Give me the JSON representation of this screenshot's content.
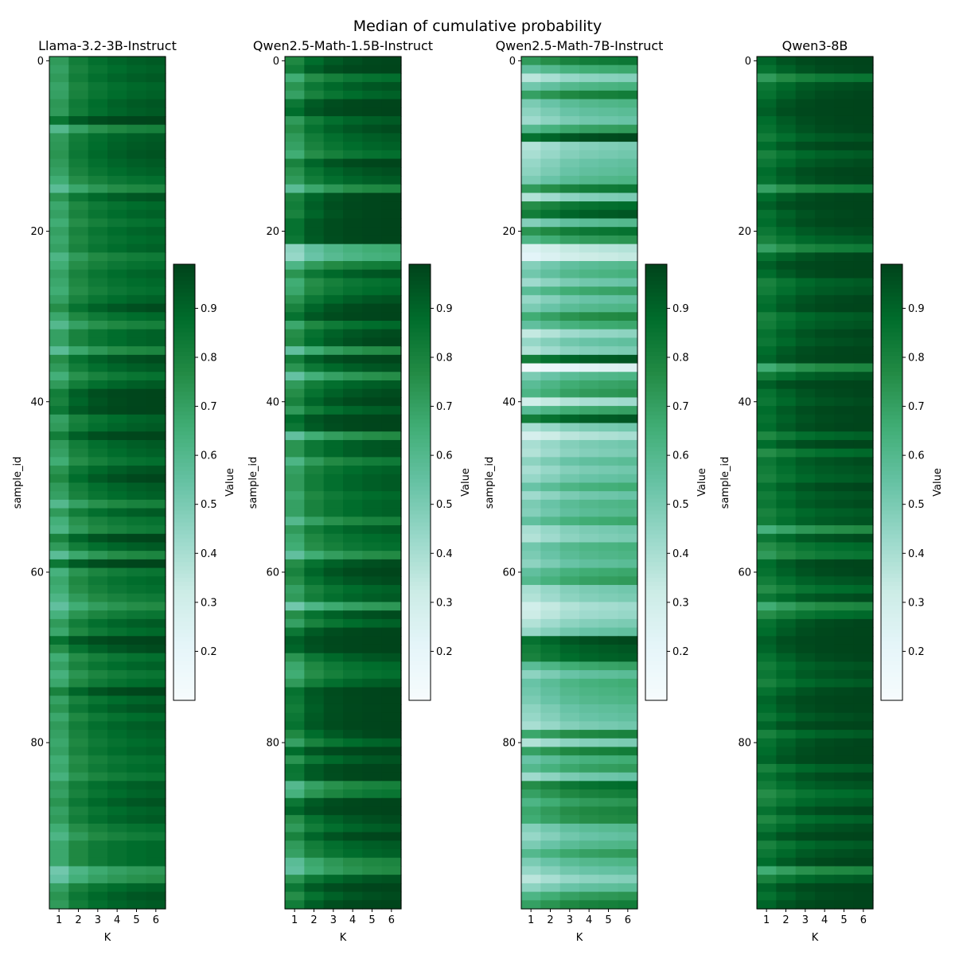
{
  "figure_title": "Median of cumulative probability",
  "chart_data": [
    {
      "type": "heatmap",
      "title": "Llama-3.2-3B-Instruct",
      "xlabel": "K",
      "ylabel": "sample_id",
      "x_categories": [
        "1",
        "2",
        "3",
        "4",
        "5",
        "6"
      ],
      "y_ticks": [
        "0",
        "20",
        "40",
        "60",
        "80"
      ],
      "colorbar": {
        "label": "Value",
        "range": [
          0.1,
          0.99
        ],
        "ticks": [
          "0.2",
          "0.3",
          "0.4",
          "0.5",
          "0.6",
          "0.7",
          "0.8",
          "0.9"
        ]
      },
      "col1_values": [
        0.72,
        0.7,
        0.72,
        0.69,
        0.7,
        0.73,
        0.72,
        0.85,
        0.6,
        0.72,
        0.73,
        0.74,
        0.72,
        0.7,
        0.66,
        0.58,
        0.74,
        0.68,
        0.7,
        0.66,
        0.7,
        0.68,
        0.7,
        0.62,
        0.66,
        0.7,
        0.68,
        0.66,
        0.7,
        0.76,
        0.68,
        0.6,
        0.7,
        0.7,
        0.58,
        0.76,
        0.72,
        0.65,
        0.72,
        0.82,
        0.8,
        0.84,
        0.7,
        0.72,
        0.82,
        0.72,
        0.7,
        0.66,
        0.74,
        0.78,
        0.72,
        0.7,
        0.6,
        0.72,
        0.65,
        0.62,
        0.8,
        0.72,
        0.58,
        0.84,
        0.64,
        0.68,
        0.66,
        0.62,
        0.56,
        0.64,
        0.72,
        0.68,
        0.86,
        0.76,
        0.66,
        0.7,
        0.64,
        0.68,
        0.8,
        0.7,
        0.74,
        0.68,
        0.72,
        0.7,
        0.68,
        0.7,
        0.66,
        0.68,
        0.64,
        0.72,
        0.7,
        0.74,
        0.7,
        0.72,
        0.66,
        0.62,
        0.68,
        0.68,
        0.68,
        0.52,
        0.55,
        0.7,
        0.74,
        0.72
      ],
      "col_step": [
        0.1,
        0.05,
        0.03,
        0.02,
        0.01
      ]
    },
    {
      "type": "heatmap",
      "title": "Qwen2.5-Math-1.5B-Instruct",
      "xlabel": "K",
      "ylabel": "sample_id",
      "x_categories": [
        "1",
        "2",
        "3",
        "4",
        "5",
        "6"
      ],
      "y_ticks": [
        "0",
        "20",
        "40",
        "60",
        "80"
      ],
      "colorbar": {
        "label": "Value",
        "range": [
          0.1,
          0.99
        ],
        "ticks": [
          "0.2",
          "0.3",
          "0.4",
          "0.5",
          "0.6",
          "0.7",
          "0.8",
          "0.9"
        ]
      },
      "col1_values": [
        0.78,
        0.82,
        0.66,
        0.74,
        0.7,
        0.84,
        0.88,
        0.72,
        0.76,
        0.72,
        0.7,
        0.66,
        0.8,
        0.75,
        0.72,
        0.58,
        0.8,
        0.82,
        0.8,
        0.86,
        0.86,
        0.84,
        0.46,
        0.44,
        0.62,
        0.74,
        0.66,
        0.68,
        0.74,
        0.8,
        0.86,
        0.68,
        0.76,
        0.78,
        0.56,
        0.82,
        0.74,
        0.55,
        0.72,
        0.76,
        0.8,
        0.72,
        0.88,
        0.84,
        0.56,
        0.74,
        0.74,
        0.62,
        0.7,
        0.72,
        0.72,
        0.68,
        0.7,
        0.7,
        0.6,
        0.72,
        0.68,
        0.66,
        0.56,
        0.76,
        0.8,
        0.76,
        0.7,
        0.72,
        0.52,
        0.76,
        0.7,
        0.84,
        0.92,
        0.9,
        0.74,
        0.68,
        0.66,
        0.72,
        0.86,
        0.84,
        0.82,
        0.84,
        0.86,
        0.78,
        0.7,
        0.88,
        0.74,
        0.85,
        0.84,
        0.6,
        0.64,
        0.84,
        0.9,
        0.76,
        0.72,
        0.8,
        0.72,
        0.7,
        0.58,
        0.56,
        0.74,
        0.84,
        0.76,
        0.82
      ],
      "col_step": [
        0.1,
        0.05,
        0.03,
        0.02,
        0.01
      ]
    },
    {
      "type": "heatmap",
      "title": "Qwen2.5-Math-7B-Instruct",
      "xlabel": "K",
      "ylabel": "sample_id",
      "x_categories": [
        "1",
        "2",
        "3",
        "4",
        "5",
        "6"
      ],
      "y_ticks": [
        "0",
        "20",
        "40",
        "60",
        "80"
      ],
      "colorbar": {
        "label": "Value",
        "range": [
          0.1,
          0.99
        ],
        "ticks": [
          "0.2",
          "0.3",
          "0.4",
          "0.5",
          "0.6",
          "0.7",
          "0.8",
          "0.9"
        ]
      },
      "col1_values": [
        0.72,
        0.56,
        0.36,
        0.52,
        0.7,
        0.5,
        0.46,
        0.42,
        0.6,
        0.86,
        0.38,
        0.4,
        0.44,
        0.46,
        0.5,
        0.72,
        0.38,
        0.76,
        0.82,
        0.48,
        0.74,
        0.62,
        0.26,
        0.22,
        0.48,
        0.52,
        0.42,
        0.58,
        0.44,
        0.5,
        0.66,
        0.56,
        0.34,
        0.44,
        0.38,
        0.82,
        0.14,
        0.5,
        0.58,
        0.62,
        0.3,
        0.58,
        0.82,
        0.4,
        0.28,
        0.4,
        0.38,
        0.46,
        0.4,
        0.44,
        0.54,
        0.42,
        0.5,
        0.48,
        0.56,
        0.4,
        0.38,
        0.52,
        0.5,
        0.46,
        0.56,
        0.6,
        0.4,
        0.38,
        0.3,
        0.32,
        0.38,
        0.44,
        0.86,
        0.82,
        0.8,
        0.58,
        0.46,
        0.54,
        0.52,
        0.5,
        0.46,
        0.44,
        0.4,
        0.68,
        0.38,
        0.7,
        0.54,
        0.6,
        0.42,
        0.76,
        0.7,
        0.62,
        0.68,
        0.66,
        0.48,
        0.44,
        0.5,
        0.6,
        0.5,
        0.44,
        0.36,
        0.46,
        0.62,
        0.7
      ],
      "col_step": [
        0.04,
        0.04,
        0.02,
        0.01,
        0.01
      ]
    },
    {
      "type": "heatmap",
      "title": "Qwen3-8B",
      "xlabel": "K",
      "ylabel": "sample_id",
      "x_categories": [
        "1",
        "2",
        "3",
        "4",
        "5",
        "6"
      ],
      "y_ticks": [
        "0",
        "20",
        "40",
        "60",
        "80"
      ],
      "colorbar": {
        "label": "Value",
        "range": [
          0.1,
          0.99
        ],
        "ticks": [
          "0.2",
          "0.3",
          "0.4",
          "0.5",
          "0.6",
          "0.7",
          "0.8",
          "0.9"
        ]
      },
      "col1_values": [
        0.9,
        0.86,
        0.72,
        0.84,
        0.86,
        0.9,
        0.92,
        0.88,
        0.86,
        0.82,
        0.88,
        0.8,
        0.84,
        0.88,
        0.86,
        0.7,
        0.88,
        0.92,
        0.86,
        0.88,
        0.84,
        0.8,
        0.7,
        0.86,
        0.92,
        0.88,
        0.8,
        0.82,
        0.86,
        0.88,
        0.8,
        0.82,
        0.86,
        0.84,
        0.88,
        0.9,
        0.66,
        0.82,
        0.92,
        0.86,
        0.84,
        0.88,
        0.86,
        0.88,
        0.78,
        0.88,
        0.76,
        0.84,
        0.82,
        0.8,
        0.86,
        0.82,
        0.84,
        0.8,
        0.82,
        0.64,
        0.84,
        0.76,
        0.72,
        0.88,
        0.86,
        0.82,
        0.76,
        0.84,
        0.66,
        0.76,
        0.86,
        0.88,
        0.92,
        0.9,
        0.86,
        0.82,
        0.84,
        0.8,
        0.86,
        0.9,
        0.88,
        0.84,
        0.9,
        0.8,
        0.86,
        0.88,
        0.9,
        0.8,
        0.86,
        0.82,
        0.76,
        0.8,
        0.86,
        0.78,
        0.84,
        0.9,
        0.8,
        0.84,
        0.88,
        0.66,
        0.8,
        0.9,
        0.86,
        0.9
      ],
      "col_step": [
        0.05,
        0.04,
        0.02,
        0.01,
        0.01
      ]
    }
  ]
}
